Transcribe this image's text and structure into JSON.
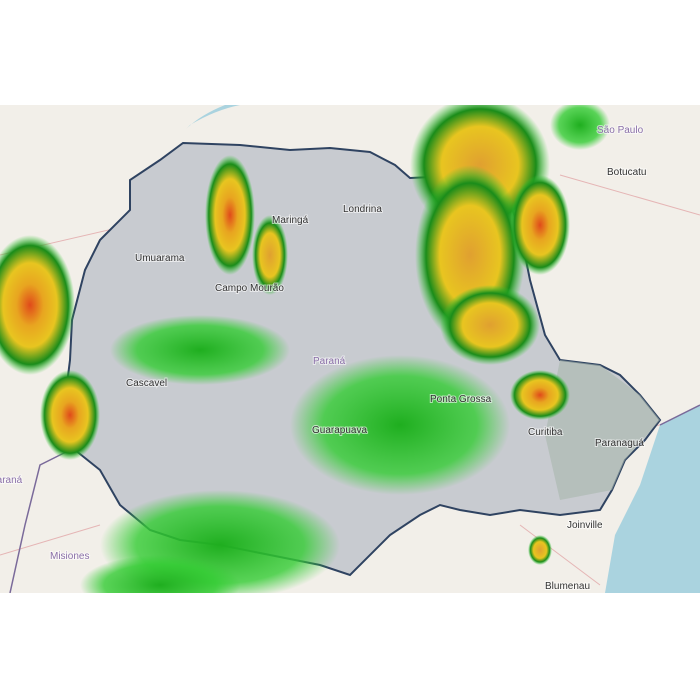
{
  "map": {
    "type": "weather-radar",
    "colors": {
      "land": "#f2efe9",
      "water": "#aad3df",
      "state_fill": "#c8cbd0",
      "state_border": "#2f4361",
      "rain_light": "#33cc33",
      "rain_mid": "#1a8c1a",
      "rain_heavy": "#e8c520",
      "rain_intense": "#e04a1a"
    },
    "labels": [
      {
        "id": "umuarama",
        "text": "Umuarama"
      },
      {
        "id": "campo-mourao",
        "text": "Campo Mourão"
      },
      {
        "id": "maringa",
        "text": "Maringá"
      },
      {
        "id": "londrina",
        "text": "Londrina"
      },
      {
        "id": "cascavel",
        "text": "Cascavel"
      },
      {
        "id": "parana-state",
        "text": "Paraná"
      },
      {
        "id": "guarapuava",
        "text": "Guarapuava"
      },
      {
        "id": "ponta-grossa",
        "text": "Ponta Grossa"
      },
      {
        "id": "curitiba",
        "text": "Curitiba"
      },
      {
        "id": "paranagua",
        "text": "Paranaguá"
      },
      {
        "id": "joinville",
        "text": "Joinville"
      },
      {
        "id": "blumenau",
        "text": "Blumenau"
      },
      {
        "id": "botucatu",
        "text": "Botucatu"
      },
      {
        "id": "sao-paulo",
        "text": "São Paulo"
      },
      {
        "id": "misiones",
        "text": "Misiones"
      },
      {
        "id": "parana-py",
        "text": "Paraná"
      }
    ]
  }
}
